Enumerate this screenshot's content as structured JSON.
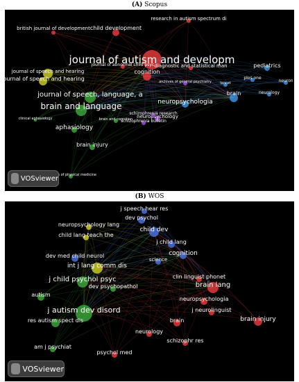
{
  "panels": [
    {
      "id": "A",
      "prefix": "(A)",
      "label": "Scopus",
      "logo_text": "VOSviewer",
      "clusters": {
        "red": "#e0393b",
        "yellow": "#c8c826",
        "green": "#3aa43a",
        "blue": "#3b8fd9",
        "purple": "#9a4fd0"
      },
      "nodes": [
        {
          "text": "journal of autism and developm",
          "color": "red"
        },
        {
          "text": "british journal of development",
          "color": "red"
        },
        {
          "text": "child development",
          "color": "red"
        },
        {
          "text": "research in autism spectrum di",
          "color": "red"
        },
        {
          "text": "journal of abnormal child psyc",
          "color": "red"
        },
        {
          "text": "cognition",
          "color": "red"
        },
        {
          "text": "diagnostic and statistical man",
          "color": "red"
        },
        {
          "text": "pediatrics",
          "color": "blue"
        },
        {
          "text": "archives of general psychiatry",
          "color": "purple"
        },
        {
          "text": "lancet",
          "color": "blue"
        },
        {
          "text": "plos one",
          "color": "blue"
        },
        {
          "text": "neuron",
          "color": "blue"
        },
        {
          "text": "neurology",
          "color": "blue"
        },
        {
          "text": "brain",
          "color": "blue"
        },
        {
          "text": "journal of speech and hearing",
          "color": "yellow"
        },
        {
          "text": "journal of speech and hearing",
          "color": "yellow"
        },
        {
          "text": "journal of speech, language, a",
          "color": "green"
        },
        {
          "text": "brain and language",
          "color": "green"
        },
        {
          "text": "neuropsychologia",
          "color": "blue"
        },
        {
          "text": "neuropsychology",
          "color": "purple"
        },
        {
          "text": "clinical aphasiology",
          "color": "green"
        },
        {
          "text": "brain and cognition",
          "color": "green"
        },
        {
          "text": "aphasiology",
          "color": "green"
        },
        {
          "text": "schizophrenia research",
          "color": "purple"
        },
        {
          "text": "schizophrenia bulletin",
          "color": "purple"
        },
        {
          "text": "brain injury",
          "color": "green"
        },
        {
          "text": "archives of physical medicine",
          "color": "green"
        }
      ]
    },
    {
      "id": "B",
      "prefix": "(B)",
      "label": "WOS",
      "logo_text": "VOSviewer",
      "clusters": {
        "red": "#e0393b",
        "yellow": "#c8c826",
        "green": "#3aa43a",
        "blue": "#4a6fd8"
      },
      "nodes": [
        {
          "text": "j speech hear res",
          "color": "blue"
        },
        {
          "text": "dev psychol",
          "color": "blue"
        },
        {
          "text": "neuropsychology lang",
          "color": "yellow"
        },
        {
          "text": "child dev",
          "color": "blue"
        },
        {
          "text": "child lang teach the",
          "color": "yellow"
        },
        {
          "text": "j child lang",
          "color": "blue"
        },
        {
          "text": "dev med child neurol",
          "color": "blue"
        },
        {
          "text": "cognition",
          "color": "blue"
        },
        {
          "text": "int j lang comm dis",
          "color": "yellow"
        },
        {
          "text": "science",
          "color": "blue"
        },
        {
          "text": "j child psychol psyc",
          "color": "green"
        },
        {
          "text": "clin linguist phonet",
          "color": "red"
        },
        {
          "text": "brain lang",
          "color": "red"
        },
        {
          "text": "dev psychopathol",
          "color": "green"
        },
        {
          "text": "autism",
          "color": "green"
        },
        {
          "text": "neuropsychologia",
          "color": "red"
        },
        {
          "text": "j autism dev disord",
          "color": "green"
        },
        {
          "text": "j neurolinguist",
          "color": "red"
        },
        {
          "text": "res autism spect dis",
          "color": "green"
        },
        {
          "text": "brain",
          "color": "red"
        },
        {
          "text": "brain injury",
          "color": "red"
        },
        {
          "text": "neurology",
          "color": "red"
        },
        {
          "text": "schizophr res",
          "color": "red"
        },
        {
          "text": "am j psychiat",
          "color": "green"
        },
        {
          "text": "psychol med",
          "color": "red"
        }
      ]
    }
  ]
}
